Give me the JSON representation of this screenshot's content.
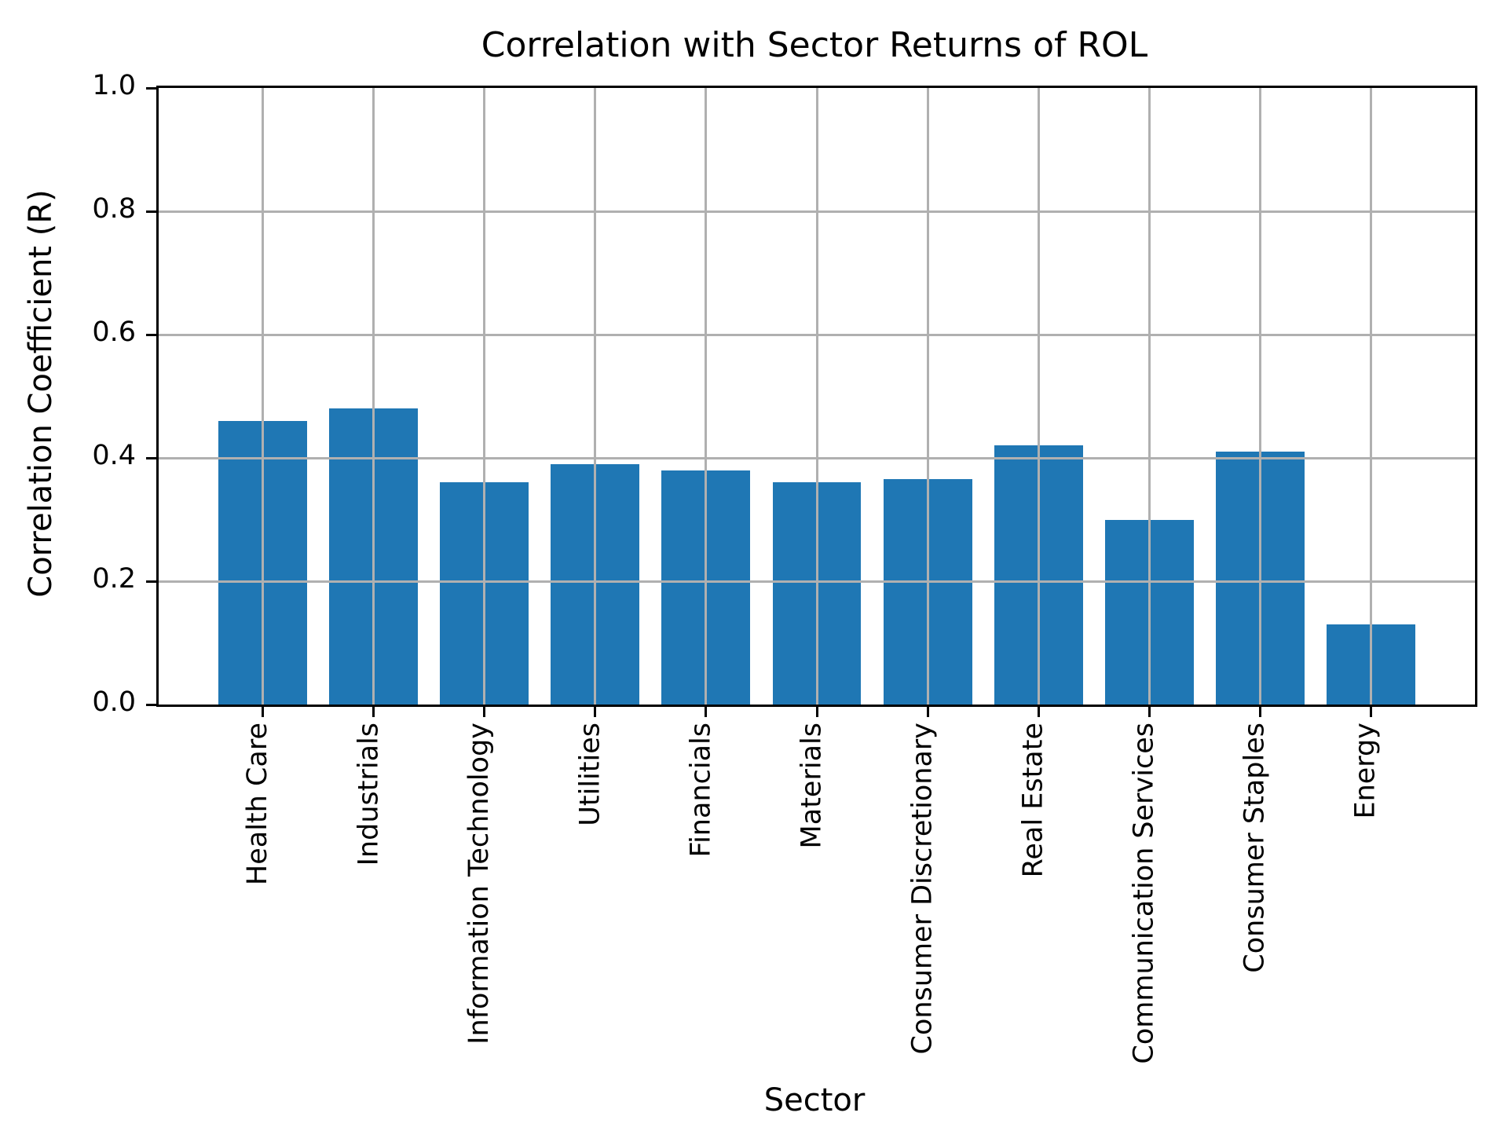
{
  "chart_data": {
    "type": "bar",
    "title": "Correlation with Sector Returns of ROL",
    "xlabel": "Sector",
    "ylabel": "Correlation Coefficient (R)",
    "categories": [
      "Health Care",
      "Industrials",
      "Information Technology",
      "Utilities",
      "Financials",
      "Materials",
      "Consumer Discretionary",
      "Real Estate",
      "Communication Services",
      "Consumer Staples",
      "Energy"
    ],
    "values": [
      0.46,
      0.48,
      0.36,
      0.39,
      0.38,
      0.36,
      0.365,
      0.42,
      0.3,
      0.41,
      0.13
    ],
    "ylim": [
      0.0,
      1.0
    ],
    "yticks": [
      0.0,
      0.2,
      0.4,
      0.6,
      0.8,
      1.0
    ],
    "ytick_format_decimals": 1,
    "x_tick_rotation": 90,
    "grid": true,
    "grid_over_bars": true,
    "legend": false,
    "colors": {
      "bar": "#1f77b4",
      "grid": "#b0b0b0",
      "spine": "#000000",
      "text": "#000000",
      "background": "#ffffff"
    }
  }
}
